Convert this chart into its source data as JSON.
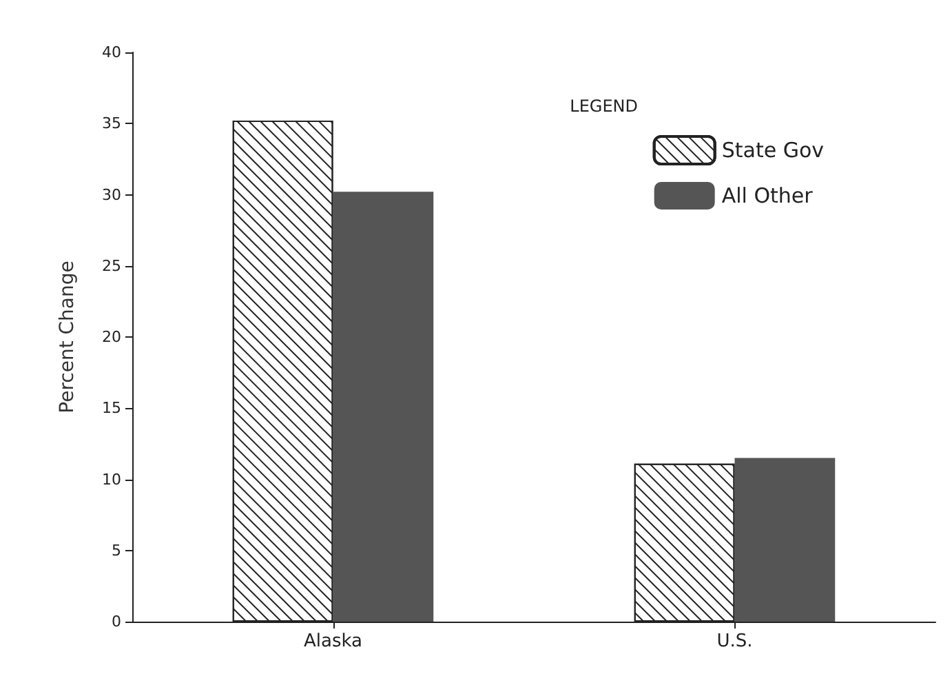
{
  "chart_data": {
    "type": "bar",
    "ylabel": "Percent Change",
    "legend_title": "LEGEND",
    "categories": [
      "Alaska",
      "U.S."
    ],
    "series": [
      {
        "name": "State Gov",
        "color": "#ffffff",
        "values": [
          35.2,
          11.1
        ]
      },
      {
        "name": "All Other",
        "color": "#555555",
        "values": [
          30.2,
          11.5
        ]
      }
    ],
    "ylim": [
      0,
      40
    ],
    "yticks": [
      0,
      5,
      10,
      15,
      20,
      25,
      30,
      35,
      40
    ],
    "grid": false,
    "legend": "top right"
  }
}
